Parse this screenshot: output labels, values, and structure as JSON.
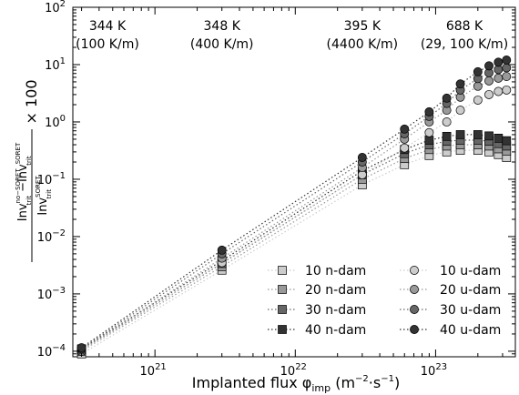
{
  "chart_data": {
    "type": "scatter",
    "title": "",
    "xlabel": "Implanted flux φ",
    "xlabel_sub": "imp",
    "xlabel_unit_open": " (m",
    "xlabel_unit_exp1": "−2",
    "xlabel_unit_mid": "·s",
    "xlabel_unit_exp2": "−1",
    "xlabel_unit_close": ")",
    "ylabel_num_a": "Inv",
    "ylabel_num_a_sup": "no−SORET",
    "ylabel_num_a_sub": "trit",
    "ylabel_num_minus": " −Inv",
    "ylabel_num_b_sup": "SORET",
    "ylabel_num_b_sub": "trit",
    "ylabel_den": "Inv",
    "ylabel_den_sup": "SORET",
    "ylabel_den_sub": "trit",
    "ylabel_times": "× 100",
    "xscale": "log",
    "yscale": "log",
    "xlim": [
      2.6e+20,
      3.7e+23
    ],
    "ylim": [
      8e-05,
      100
    ],
    "x_ticks": [
      {
        "value": 1e+21,
        "base": "10",
        "exp": "21"
      },
      {
        "value": 1e+22,
        "base": "10",
        "exp": "22"
      },
      {
        "value": 1e+23,
        "base": "10",
        "exp": "23"
      }
    ],
    "y_ticks": [
      {
        "value": 0.0001,
        "base": "10",
        "exp": "−4"
      },
      {
        "value": 0.001,
        "base": "10",
        "exp": "−3"
      },
      {
        "value": 0.01,
        "base": "10",
        "exp": "−2"
      },
      {
        "value": 0.1,
        "base": "10",
        "exp": "−1"
      },
      {
        "value": 1,
        "base": "10",
        "exp": "0"
      },
      {
        "value": 10,
        "base": "10",
        "exp": "1"
      },
      {
        "value": 100,
        "base": "10",
        "exp": "2"
      }
    ],
    "grid": false,
    "legend_position": "lower-right",
    "annotations": [
      {
        "x": 3e+20,
        "line1": "344 K",
        "line2": "(100 K/m)"
      },
      {
        "x": 3e+21,
        "line1": "348 K",
        "line2": "(400 K/m)"
      },
      {
        "x": 3e+22,
        "line1": "395 K",
        "line2": "(4400 K/m)"
      },
      {
        "x": 1.5e+23,
        "line1": "688 K",
        "line2": "(29, 100 K/m)"
      }
    ],
    "x": [
      3e+20,
      3e+21,
      3e+22,
      6e+22,
      9e+22,
      1.2e+23,
      1.5e+23,
      2e+23,
      2.4e+23,
      2.8e+23,
      3.2e+23
    ],
    "series": [
      {
        "name": "10 n-dam",
        "marker": "square",
        "color": "#cccccc",
        "y": [
          9e-05,
          0.0026,
          0.08,
          0.18,
          0.26,
          0.3,
          0.32,
          0.32,
          0.3,
          0.27,
          0.24
        ]
      },
      {
        "name": "20 n-dam",
        "marker": "square",
        "color": "#999999",
        "y": [
          0.0001,
          0.003,
          0.1,
          0.23,
          0.33,
          0.38,
          0.4,
          0.4,
          0.38,
          0.34,
          0.31
        ]
      },
      {
        "name": "30 n-dam",
        "marker": "square",
        "color": "#666666",
        "y": [
          0.000105,
          0.0034,
          0.12,
          0.28,
          0.4,
          0.46,
          0.48,
          0.48,
          0.46,
          0.42,
          0.38
        ]
      },
      {
        "name": "40 n-dam",
        "marker": "square",
        "color": "#333333",
        "y": [
          0.00011,
          0.0038,
          0.14,
          0.33,
          0.48,
          0.56,
          0.6,
          0.6,
          0.57,
          0.52,
          0.47
        ]
      },
      {
        "name": "10 u-dam",
        "marker": "circle",
        "color": "#cccccc",
        "y": [
          0.0001,
          0.0035,
          0.12,
          0.35,
          0.65,
          1.0,
          1.6,
          2.4,
          3.0,
          3.4,
          3.6
        ]
      },
      {
        "name": "20 u-dam",
        "marker": "circle",
        "color": "#999999",
        "y": [
          0.000105,
          0.0042,
          0.16,
          0.5,
          1.0,
          1.6,
          2.7,
          4.2,
          5.2,
          5.8,
          6.2
        ]
      },
      {
        "name": "30 u-dam",
        "marker": "circle",
        "color": "#666666",
        "y": [
          0.00011,
          0.005,
          0.2,
          0.62,
          1.25,
          2.1,
          3.6,
          5.7,
          7.2,
          8.2,
          8.8
        ]
      },
      {
        "name": "40 u-dam",
        "marker": "circle",
        "color": "#333333",
        "y": [
          0.000115,
          0.0058,
          0.24,
          0.75,
          1.5,
          2.6,
          4.6,
          7.5,
          9.5,
          11,
          12
        ]
      }
    ]
  }
}
